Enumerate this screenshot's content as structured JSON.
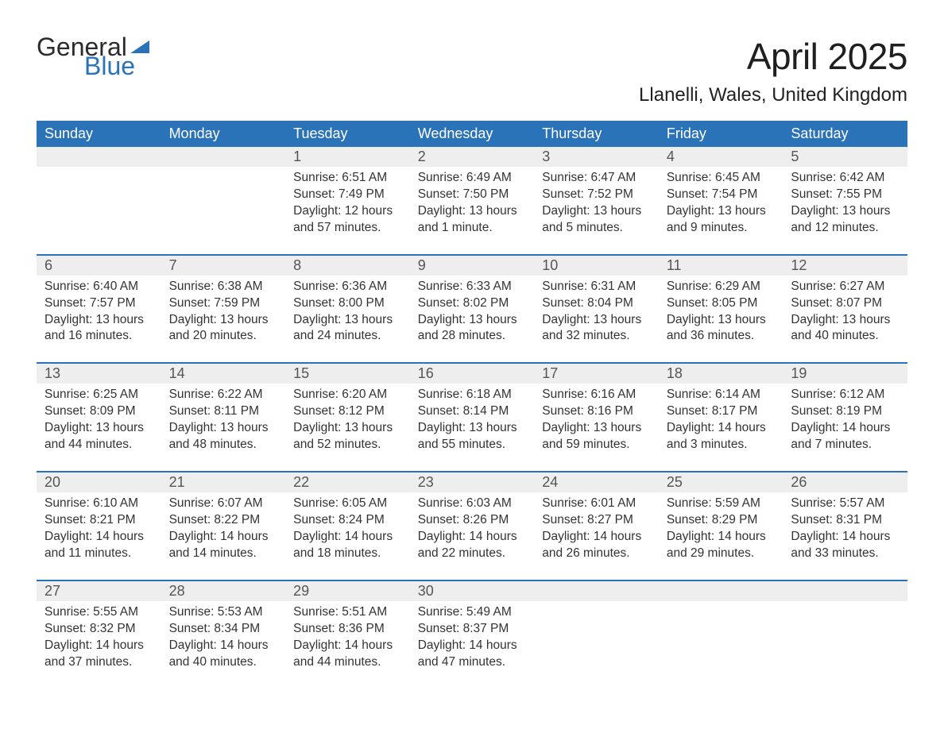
{
  "logo": {
    "line1": "General",
    "line2": "Blue"
  },
  "title": "April 2025",
  "subtitle": "Llanelli, Wales, United Kingdom",
  "colors": {
    "header_bg": "#2b73b8",
    "header_text": "#ffffff",
    "daynum_bg": "#eeeeee",
    "rule": "#2b73b8",
    "body_text": "#333333",
    "page_bg": "#ffffff"
  },
  "days_of_week": [
    "Sunday",
    "Monday",
    "Tuesday",
    "Wednesday",
    "Thursday",
    "Friday",
    "Saturday"
  ],
  "calendar": {
    "type": "table",
    "columns": 7,
    "weeks": [
      [
        {
          "day": "",
          "sunrise": "",
          "sunset": "",
          "daylight": ""
        },
        {
          "day": "",
          "sunrise": "",
          "sunset": "",
          "daylight": ""
        },
        {
          "day": "1",
          "sunrise": "Sunrise: 6:51 AM",
          "sunset": "Sunset: 7:49 PM",
          "daylight": "Daylight: 12 hours and 57 minutes."
        },
        {
          "day": "2",
          "sunrise": "Sunrise: 6:49 AM",
          "sunset": "Sunset: 7:50 PM",
          "daylight": "Daylight: 13 hours and 1 minute."
        },
        {
          "day": "3",
          "sunrise": "Sunrise: 6:47 AM",
          "sunset": "Sunset: 7:52 PM",
          "daylight": "Daylight: 13 hours and 5 minutes."
        },
        {
          "day": "4",
          "sunrise": "Sunrise: 6:45 AM",
          "sunset": "Sunset: 7:54 PM",
          "daylight": "Daylight: 13 hours and 9 minutes."
        },
        {
          "day": "5",
          "sunrise": "Sunrise: 6:42 AM",
          "sunset": "Sunset: 7:55 PM",
          "daylight": "Daylight: 13 hours and 12 minutes."
        }
      ],
      [
        {
          "day": "6",
          "sunrise": "Sunrise: 6:40 AM",
          "sunset": "Sunset: 7:57 PM",
          "daylight": "Daylight: 13 hours and 16 minutes."
        },
        {
          "day": "7",
          "sunrise": "Sunrise: 6:38 AM",
          "sunset": "Sunset: 7:59 PM",
          "daylight": "Daylight: 13 hours and 20 minutes."
        },
        {
          "day": "8",
          "sunrise": "Sunrise: 6:36 AM",
          "sunset": "Sunset: 8:00 PM",
          "daylight": "Daylight: 13 hours and 24 minutes."
        },
        {
          "day": "9",
          "sunrise": "Sunrise: 6:33 AM",
          "sunset": "Sunset: 8:02 PM",
          "daylight": "Daylight: 13 hours and 28 minutes."
        },
        {
          "day": "10",
          "sunrise": "Sunrise: 6:31 AM",
          "sunset": "Sunset: 8:04 PM",
          "daylight": "Daylight: 13 hours and 32 minutes."
        },
        {
          "day": "11",
          "sunrise": "Sunrise: 6:29 AM",
          "sunset": "Sunset: 8:05 PM",
          "daylight": "Daylight: 13 hours and 36 minutes."
        },
        {
          "day": "12",
          "sunrise": "Sunrise: 6:27 AM",
          "sunset": "Sunset: 8:07 PM",
          "daylight": "Daylight: 13 hours and 40 minutes."
        }
      ],
      [
        {
          "day": "13",
          "sunrise": "Sunrise: 6:25 AM",
          "sunset": "Sunset: 8:09 PM",
          "daylight": "Daylight: 13 hours and 44 minutes."
        },
        {
          "day": "14",
          "sunrise": "Sunrise: 6:22 AM",
          "sunset": "Sunset: 8:11 PM",
          "daylight": "Daylight: 13 hours and 48 minutes."
        },
        {
          "day": "15",
          "sunrise": "Sunrise: 6:20 AM",
          "sunset": "Sunset: 8:12 PM",
          "daylight": "Daylight: 13 hours and 52 minutes."
        },
        {
          "day": "16",
          "sunrise": "Sunrise: 6:18 AM",
          "sunset": "Sunset: 8:14 PM",
          "daylight": "Daylight: 13 hours and 55 minutes."
        },
        {
          "day": "17",
          "sunrise": "Sunrise: 6:16 AM",
          "sunset": "Sunset: 8:16 PM",
          "daylight": "Daylight: 13 hours and 59 minutes."
        },
        {
          "day": "18",
          "sunrise": "Sunrise: 6:14 AM",
          "sunset": "Sunset: 8:17 PM",
          "daylight": "Daylight: 14 hours and 3 minutes."
        },
        {
          "day": "19",
          "sunrise": "Sunrise: 6:12 AM",
          "sunset": "Sunset: 8:19 PM",
          "daylight": "Daylight: 14 hours and 7 minutes."
        }
      ],
      [
        {
          "day": "20",
          "sunrise": "Sunrise: 6:10 AM",
          "sunset": "Sunset: 8:21 PM",
          "daylight": "Daylight: 14 hours and 11 minutes."
        },
        {
          "day": "21",
          "sunrise": "Sunrise: 6:07 AM",
          "sunset": "Sunset: 8:22 PM",
          "daylight": "Daylight: 14 hours and 14 minutes."
        },
        {
          "day": "22",
          "sunrise": "Sunrise: 6:05 AM",
          "sunset": "Sunset: 8:24 PM",
          "daylight": "Daylight: 14 hours and 18 minutes."
        },
        {
          "day": "23",
          "sunrise": "Sunrise: 6:03 AM",
          "sunset": "Sunset: 8:26 PM",
          "daylight": "Daylight: 14 hours and 22 minutes."
        },
        {
          "day": "24",
          "sunrise": "Sunrise: 6:01 AM",
          "sunset": "Sunset: 8:27 PM",
          "daylight": "Daylight: 14 hours and 26 minutes."
        },
        {
          "day": "25",
          "sunrise": "Sunrise: 5:59 AM",
          "sunset": "Sunset: 8:29 PM",
          "daylight": "Daylight: 14 hours and 29 minutes."
        },
        {
          "day": "26",
          "sunrise": "Sunrise: 5:57 AM",
          "sunset": "Sunset: 8:31 PM",
          "daylight": "Daylight: 14 hours and 33 minutes."
        }
      ],
      [
        {
          "day": "27",
          "sunrise": "Sunrise: 5:55 AM",
          "sunset": "Sunset: 8:32 PM",
          "daylight": "Daylight: 14 hours and 37 minutes."
        },
        {
          "day": "28",
          "sunrise": "Sunrise: 5:53 AM",
          "sunset": "Sunset: 8:34 PM",
          "daylight": "Daylight: 14 hours and 40 minutes."
        },
        {
          "day": "29",
          "sunrise": "Sunrise: 5:51 AM",
          "sunset": "Sunset: 8:36 PM",
          "daylight": "Daylight: 14 hours and 44 minutes."
        },
        {
          "day": "30",
          "sunrise": "Sunrise: 5:49 AM",
          "sunset": "Sunset: 8:37 PM",
          "daylight": "Daylight: 14 hours and 47 minutes."
        },
        {
          "day": "",
          "sunrise": "",
          "sunset": "",
          "daylight": ""
        },
        {
          "day": "",
          "sunrise": "",
          "sunset": "",
          "daylight": ""
        },
        {
          "day": "",
          "sunrise": "",
          "sunset": "",
          "daylight": ""
        }
      ]
    ]
  }
}
